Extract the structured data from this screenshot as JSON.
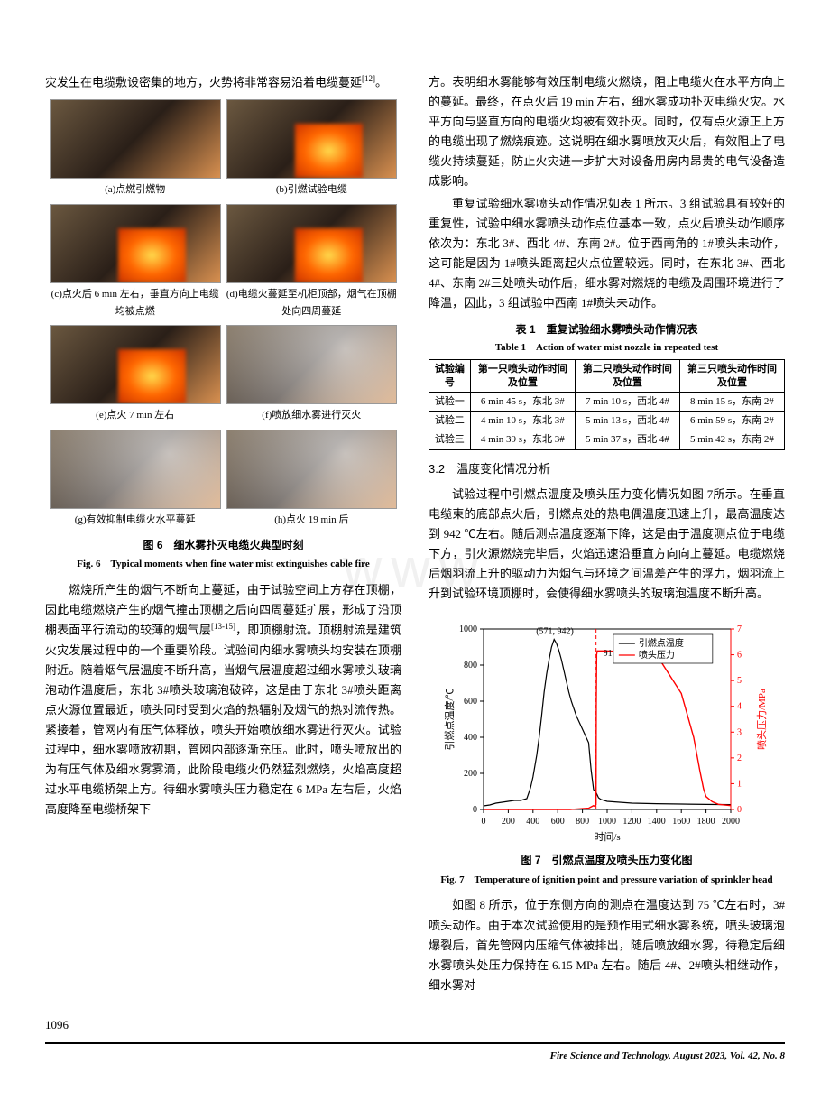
{
  "left": {
    "p1": "灾发生在电缆敷设密集的地方，火势将非常容易沿着电缆蔓延",
    "ref1": "[12]",
    "p1_tail": "。",
    "figs": [
      {
        "cap": "(a)点燃引燃物",
        "type": "plain"
      },
      {
        "cap": "(b)引燃试验电缆",
        "type": "fire"
      },
      {
        "cap": "(c)点火后 6 min 左右，垂直方向上电缆均被点燃",
        "type": "fire"
      },
      {
        "cap": "(d)电缆火蔓延至机柜顶部，烟气在顶棚处向四周蔓延",
        "type": "fire"
      },
      {
        "cap": "(e)点火 7 min 左右",
        "type": "fire"
      },
      {
        "cap": "(f)喷放细水雾进行灭火",
        "type": "mist"
      },
      {
        "cap": "(g)有效抑制电缆火水平蔓延",
        "type": "mist"
      },
      {
        "cap": "(h)点火 19 min 后",
        "type": "mist"
      }
    ],
    "fig_title_cn": "图 6　细水雾扑灭电缆火典型时刻",
    "fig_title_en": "Fig. 6　Typical moments when fine water mist extinguishes cable fire",
    "p2": "燃烧所产生的烟气不断向上蔓延，由于试验空间上方存在顶棚，因此电缆燃烧产生的烟气撞击顶棚之后向四周蔓延扩展，形成了沿顶棚表面平行流动的较薄的烟气层",
    "ref2": "[13-15]",
    "p2b": "，即顶棚射流。顶棚射流是建筑火灾发展过程中的一个重要阶段。试验间内细水雾喷头均安装在顶棚附近。随着烟气层温度不断升高，当烟气层温度超过细水雾喷头玻璃泡动作温度后，东北 3#喷头玻璃泡破碎，这是由于东北 3#喷头距离点火源位置最近，喷头同时受到火焰的热辐射及烟气的热对流传热。紧接着，管网内有压气体释放，喷头开始喷放细水雾进行灭火。试验过程中，细水雾喷放初期，管网内部逐渐充压。此时，喷头喷放出的为有压气体及细水雾雾滴，此阶段电缆火仍然猛烈燃烧，火焰高度超过水平电缆桥架上方。待细水雾喷头压力稳定在 6 MPa 左右后，火焰高度降至电缆桥架下"
  },
  "right": {
    "p1": "方。表明细水雾能够有效压制电缆火燃烧，阻止电缆火在水平方向上的蔓延。最终，在点火后 19 min 左右，细水雾成功扑灭电缆火灾。水平方向与竖直方向的电缆火均被有效扑灭。同时，仅有点火源正上方的电缆出现了燃烧痕迹。这说明在细水雾喷放灭火后，有效阻止了电缆火持续蔓延，防止火灾进一步扩大对设备用房内昂贵的电气设备造成影响。",
    "p2": "重复试验细水雾喷头动作情况如表 1 所示。3 组试验具有较好的重复性，试验中细水雾喷头动作点位基本一致，点火后喷头动作顺序依次为：东北 3#、西北 4#、东南 2#。位于西南角的 1#喷头未动作，这可能是因为 1#喷头距离起火点位置较远。同时，在东北 3#、西北 4#、东南 2#三处喷头动作后，细水雾对燃烧的电缆及周围环境进行了降温，因此，3 组试验中西南 1#喷头未动作。",
    "tbl_title_cn": "表 1　重复试验细水雾喷头动作情况表",
    "tbl_title_en": "Table 1　Action of water mist nozzle in repeated test",
    "tbl": {
      "head": [
        "试验编号",
        "第一只喷头动作时间及位置",
        "第二只喷头动作时间及位置",
        "第三只喷头动作时间及位置"
      ],
      "rows": [
        [
          "试验一",
          "6 min 45 s，东北 3#",
          "7 min 10 s，西北 4#",
          "8 min 15 s，东南 2#"
        ],
        [
          "试验二",
          "4 min 10 s，东北 3#",
          "5 min 13 s，西北 4#",
          "6 min 59 s，东南 2#"
        ],
        [
          "试验三",
          "4 min 39 s，东北 3#",
          "5 min 37 s，西北 4#",
          "5 min 42 s，东南 2#"
        ]
      ]
    },
    "sec": "3.2　温度变化情况分析",
    "p3": "试验过程中引燃点温度及喷头压力变化情况如图 7所示。在垂直电缆束的底部点火后，引燃点处的热电偶温度迅速上升，最高温度达到 942 ℃左右。随后测点温度逐渐下降，这是由于温度测点位于电缆下方，引火源燃烧完毕后，火焰迅速沿垂直方向向上蔓延。电缆燃烧后烟羽流上升的驱动力为烟气与环境之间温差产生的浮力，烟羽流上升到试验环境顶棚时，会使得细水雾喷头的玻璃泡温度不断升高。",
    "chart": {
      "type": "dual-axis-line",
      "x_label": "时间/s",
      "y1_label": "引燃点温度/℃",
      "y2_label": "喷头压力/MPa",
      "x_ticks": [
        0,
        200,
        400,
        600,
        800,
        1000,
        1200,
        1400,
        1600,
        1800,
        2000
      ],
      "y1_ticks": [
        0,
        200,
        400,
        600,
        800,
        1000
      ],
      "y2_ticks": [
        0,
        1,
        2,
        3,
        4,
        5,
        6,
        7
      ],
      "series1_name": "引燃点温度",
      "series2_name": "喷头压力",
      "series1_color": "#000000",
      "series2_color": "#ff0000",
      "annotation1": "(571, 942)",
      "annotation2": "910 s 开启阀组",
      "background_color": "#ffffff",
      "grid_color": "#000000",
      "font_size": 10,
      "series1_data": [
        [
          0,
          20
        ],
        [
          50,
          25
        ],
        [
          100,
          35
        ],
        [
          150,
          40
        ],
        [
          200,
          45
        ],
        [
          250,
          50
        ],
        [
          300,
          50
        ],
        [
          350,
          60
        ],
        [
          380,
          120
        ],
        [
          400,
          180
        ],
        [
          430,
          300
        ],
        [
          450,
          400
        ],
        [
          470,
          520
        ],
        [
          490,
          650
        ],
        [
          510,
          750
        ],
        [
          530,
          830
        ],
        [
          550,
          900
        ],
        [
          571,
          942
        ],
        [
          590,
          920
        ],
        [
          610,
          880
        ],
        [
          630,
          830
        ],
        [
          650,
          770
        ],
        [
          670,
          710
        ],
        [
          690,
          650
        ],
        [
          710,
          600
        ],
        [
          730,
          560
        ],
        [
          750,
          520
        ],
        [
          770,
          490
        ],
        [
          790,
          460
        ],
        [
          810,
          430
        ],
        [
          830,
          400
        ],
        [
          850,
          370
        ],
        [
          870,
          220
        ],
        [
          890,
          110
        ],
        [
          910,
          95
        ],
        [
          930,
          65
        ],
        [
          950,
          55
        ],
        [
          1000,
          45
        ],
        [
          1100,
          40
        ],
        [
          1200,
          35
        ],
        [
          1400,
          32
        ],
        [
          1600,
          30
        ],
        [
          1800,
          28
        ],
        [
          2000,
          27
        ]
      ],
      "series2_data": [
        [
          0,
          0
        ],
        [
          400,
          0
        ],
        [
          700,
          0
        ],
        [
          850,
          0.05
        ],
        [
          870,
          0.1
        ],
        [
          890,
          0.15
        ],
        [
          900,
          0.12
        ],
        [
          910,
          0.18
        ],
        [
          912,
          4.0
        ],
        [
          915,
          6.0
        ],
        [
          920,
          6.15
        ],
        [
          940,
          6.15
        ],
        [
          1000,
          6.15
        ],
        [
          1200,
          6.1
        ],
        [
          1400,
          6.0
        ],
        [
          1600,
          4.5
        ],
        [
          1700,
          2.8
        ],
        [
          1750,
          1.5
        ],
        [
          1780,
          0.8
        ],
        [
          1800,
          0.5
        ],
        [
          1850,
          0.3
        ],
        [
          1900,
          0.2
        ],
        [
          2000,
          0.15
        ]
      ]
    },
    "fig7_title_cn": "图 7　引燃点温度及喷头压力变化图",
    "fig7_title_en": "Fig. 7　Temperature of ignition point and pressure variation of sprinkler head",
    "p4": "如图 8 所示，位于东侧方向的测点在温度达到 75 ℃左右时，3#喷头动作。由于本次试验使用的是预作用式细水雾系统，喷头玻璃泡爆裂后，首先管网内压缩气体被排出，随后喷放细水雾，待稳定后细水雾喷头处压力保持在 6.15 MPa 左右。随后 4#、2#喷头相继动作，细水雾对"
  },
  "page_num": "1096",
  "footer": "Fire Science and Technology, August  2023, Vol. 42, No. 8",
  "watermark": "www"
}
